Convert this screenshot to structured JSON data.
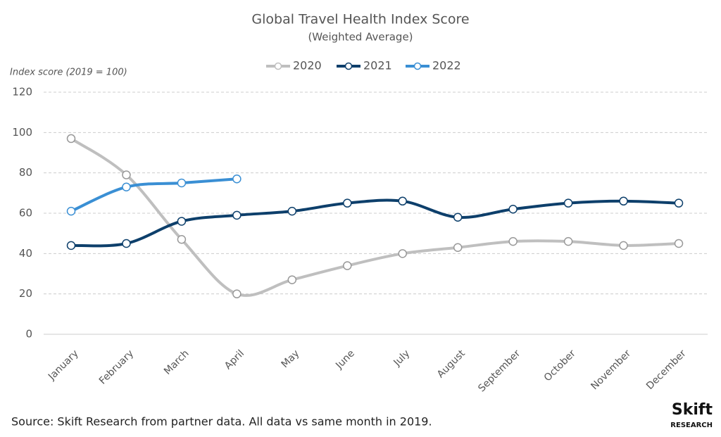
{
  "chart_data": {
    "type": "line",
    "title": "Global Travel Health Index Score",
    "subtitle": "(Weighted Average)",
    "y_label": "Index score (2019 = 100)",
    "source": "Source: Skift Research from partner data. All data vs same month in 2019.",
    "logo": {
      "name": "Skift",
      "sub": "RESEARCH"
    },
    "categories": [
      "January",
      "February",
      "March",
      "April",
      "May",
      "June",
      "July",
      "August",
      "September",
      "October",
      "November",
      "December"
    ],
    "series": [
      {
        "name": "2020",
        "color": "#bfbfbf",
        "values": [
          97,
          79,
          47,
          20,
          27,
          34,
          40,
          43,
          46,
          46,
          44,
          45
        ]
      },
      {
        "name": "2021",
        "color": "#0d3f6b",
        "values": [
          44,
          45,
          56,
          59,
          61,
          65,
          66,
          58,
          62,
          65,
          66,
          65
        ]
      },
      {
        "name": "2022",
        "color": "#3a8fd4",
        "values": [
          61,
          73,
          75,
          77,
          null,
          null,
          null,
          null,
          null,
          null,
          null,
          null
        ]
      }
    ],
    "ylim": [
      0,
      120
    ],
    "yticks": [
      0,
      20,
      40,
      60,
      80,
      100,
      120
    ],
    "grid": true,
    "legend": "top"
  }
}
